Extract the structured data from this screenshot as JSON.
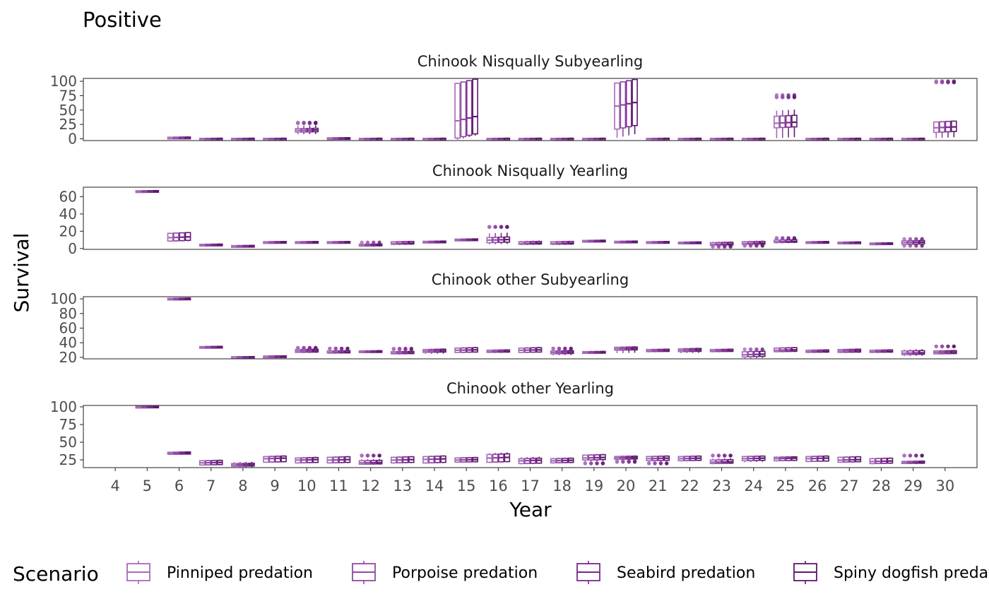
{
  "title": "Positive",
  "chart_data": {
    "type": "boxplot",
    "xlabel": "Year",
    "ylabel": "Survival",
    "x": [
      4,
      5,
      6,
      7,
      8,
      9,
      10,
      11,
      12,
      13,
      14,
      15,
      16,
      17,
      18,
      19,
      20,
      21,
      22,
      23,
      24,
      25,
      26,
      27,
      28,
      29,
      30
    ],
    "legend": {
      "title": "Scenario",
      "position": "bottom",
      "entries": [
        "Pinniped predation",
        "Porpoise predation",
        "Seabird predation",
        "Spiny dogfish predation"
      ]
    },
    "colors": [
      "#a66bb8",
      "#8f4aa3",
      "#7a2a8e",
      "#5e1a6e"
    ],
    "panels": [
      {
        "title": "Chinook Nisqually Subyearling",
        "ylim": [
          -3,
          105
        ],
        "yticks": [
          0,
          25,
          50,
          75,
          100
        ],
        "boxes": [
          {
            "x": 6,
            "q1": 1.5,
            "med": 2.5,
            "q3": 3,
            "lo": 1,
            "hi": 3.5
          },
          {
            "x": 7,
            "q1": 0,
            "med": 0.5,
            "q3": 1,
            "lo": 0,
            "hi": 1
          },
          {
            "x": 8,
            "q1": 0,
            "med": 0.5,
            "q3": 1,
            "lo": 0,
            "hi": 1
          },
          {
            "x": 9,
            "q1": 0,
            "med": 0.5,
            "q3": 1,
            "lo": 0,
            "hi": 1
          },
          {
            "x": 10,
            "q1": 12,
            "med": 15,
            "q3": 18,
            "lo": 8,
            "hi": 23,
            "out": [
              28,
              27,
              28
            ]
          },
          {
            "x": 11,
            "q1": 0.5,
            "med": 1,
            "q3": 2,
            "lo": 0,
            "hi": 2.5
          },
          {
            "x": 12,
            "q1": 0,
            "med": 0.5,
            "q3": 1,
            "lo": 0,
            "hi": 1
          },
          {
            "x": 13,
            "q1": 0,
            "med": 0.5,
            "q3": 1,
            "lo": 0,
            "hi": 1
          },
          {
            "x": 14,
            "q1": 0,
            "med": 0.5,
            "q3": 1,
            "lo": 0,
            "hi": 1
          },
          {
            "x": 15,
            "q1": 5,
            "med": 35,
            "q3": 100,
            "lo": 2,
            "hi": 100
          },
          {
            "x": 16,
            "q1": 0,
            "med": 0.5,
            "q3": 1,
            "lo": 0,
            "hi": 1
          },
          {
            "x": 17,
            "q1": 0,
            "med": 0.5,
            "q3": 1,
            "lo": 0,
            "hi": 1
          },
          {
            "x": 18,
            "q1": 0,
            "med": 0.5,
            "q3": 1,
            "lo": 0,
            "hi": 1
          },
          {
            "x": 19,
            "q1": 0,
            "med": 0.5,
            "q3": 1,
            "lo": 0,
            "hi": 1
          },
          {
            "x": 20,
            "q1": 20,
            "med": 60,
            "q3": 100,
            "lo": 5,
            "hi": 100
          },
          {
            "x": 21,
            "q1": 0,
            "med": 0.5,
            "q3": 1,
            "lo": 0,
            "hi": 1
          },
          {
            "x": 22,
            "q1": 0,
            "med": 0.5,
            "q3": 1,
            "lo": 0,
            "hi": 1
          },
          {
            "x": 23,
            "q1": 0,
            "med": 0.5,
            "q3": 1,
            "lo": 0,
            "hi": 1
          },
          {
            "x": 24,
            "q1": 0,
            "med": 0.5,
            "q3": 1,
            "lo": 0,
            "hi": 1
          },
          {
            "x": 25,
            "q1": 20,
            "med": 28,
            "q3": 40,
            "lo": 2,
            "hi": 50,
            "out": [
              76,
              72,
              73
            ]
          },
          {
            "x": 26,
            "q1": 0,
            "med": 0.5,
            "q3": 1,
            "lo": 0,
            "hi": 1
          },
          {
            "x": 27,
            "q1": 0,
            "med": 0.5,
            "q3": 1,
            "lo": 0,
            "hi": 1
          },
          {
            "x": 28,
            "q1": 0,
            "med": 0.5,
            "q3": 1,
            "lo": 0,
            "hi": 1
          },
          {
            "x": 29,
            "q1": 0,
            "med": 0.5,
            "q3": 1,
            "lo": 0,
            "hi": 1
          },
          {
            "x": 30,
            "q1": 12,
            "med": 20,
            "q3": 30,
            "lo": 2,
            "hi": 30,
            "out": [
              100,
              98,
              99
            ]
          }
        ]
      },
      {
        "title": "Chinook Nisqually Yearling",
        "ylim": [
          -1,
          71
        ],
        "yticks": [
          0,
          20,
          40,
          60
        ],
        "boxes": [
          {
            "x": 5,
            "q1": 65.5,
            "med": 66,
            "q3": 67,
            "lo": 65,
            "hi": 67.5
          },
          {
            "x": 6,
            "q1": 9,
            "med": 13,
            "q3": 18,
            "lo": 8,
            "hi": 18
          },
          {
            "x": 7,
            "q1": 3,
            "med": 4,
            "q3": 5,
            "lo": 2.5,
            "hi": 5.5
          },
          {
            "x": 8,
            "q1": 2,
            "med": 3,
            "q3": 3.5,
            "lo": 1.5,
            "hi": 4
          },
          {
            "x": 9,
            "q1": 7,
            "med": 7.5,
            "q3": 8,
            "lo": 6.5,
            "hi": 8.5
          },
          {
            "x": 10,
            "q1": 7,
            "med": 7.5,
            "q3": 8,
            "lo": 6.5,
            "hi": 8.5
          },
          {
            "x": 11,
            "q1": 7,
            "med": 7.5,
            "q3": 8,
            "lo": 6.5,
            "hi": 8.5
          },
          {
            "x": 12,
            "q1": 3,
            "med": 4,
            "q3": 5,
            "lo": 2,
            "hi": 6,
            "out": [
              7
            ]
          },
          {
            "x": 13,
            "q1": 5,
            "med": 6,
            "q3": 8,
            "lo": 4,
            "hi": 8.5
          },
          {
            "x": 14,
            "q1": 7,
            "med": 7.5,
            "q3": 8.5,
            "lo": 6.5,
            "hi": 9
          },
          {
            "x": 15,
            "q1": 9,
            "med": 10,
            "q3": 11,
            "lo": 8.5,
            "hi": 11
          },
          {
            "x": 16,
            "q1": 7,
            "med": 10,
            "q3": 13,
            "lo": 5,
            "hi": 18,
            "out": [
              25,
              25,
              25
            ]
          },
          {
            "x": 17,
            "q1": 5,
            "med": 6,
            "q3": 8,
            "lo": 4,
            "hi": 9
          },
          {
            "x": 18,
            "q1": 5,
            "med": 6,
            "q3": 8,
            "lo": 4,
            "hi": 8.5
          },
          {
            "x": 19,
            "q1": 8,
            "med": 8.5,
            "q3": 9.5,
            "lo": 7.5,
            "hi": 10
          },
          {
            "x": 20,
            "q1": 7,
            "med": 7.5,
            "q3": 8.5,
            "lo": 6.5,
            "hi": 9
          },
          {
            "x": 21,
            "q1": 7,
            "med": 7.5,
            "q3": 8,
            "lo": 6.5,
            "hi": 8.5
          },
          {
            "x": 22,
            "q1": 6,
            "med": 6.5,
            "q3": 7.5,
            "lo": 5.5,
            "hi": 8
          },
          {
            "x": 23,
            "q1": 4,
            "med": 5,
            "q3": 7,
            "lo": 3,
            "hi": 8,
            "out": [
              2,
              3
            ]
          },
          {
            "x": 24,
            "q1": 5,
            "med": 6,
            "q3": 8,
            "lo": 4,
            "hi": 9,
            "out": [
              4,
              3
            ]
          },
          {
            "x": 25,
            "q1": 7,
            "med": 8,
            "q3": 10,
            "lo": 6,
            "hi": 11,
            "out": [
              12,
              12
            ]
          },
          {
            "x": 26,
            "q1": 6.5,
            "med": 7,
            "q3": 8,
            "lo": 6,
            "hi": 8.5
          },
          {
            "x": 27,
            "q1": 6.5,
            "med": 7,
            "q3": 7.5,
            "lo": 6,
            "hi": 8
          },
          {
            "x": 28,
            "q1": 5,
            "med": 5.5,
            "q3": 6.5,
            "lo": 4.5,
            "hi": 7
          },
          {
            "x": 29,
            "q1": 5,
            "med": 7,
            "q3": 9,
            "lo": 3,
            "hi": 10,
            "out": [
              3,
              11
            ]
          }
        ]
      },
      {
        "title": "Chinook other Subyearling",
        "ylim": [
          18,
          103
        ],
        "yticks": [
          20,
          40,
          60,
          80,
          100
        ],
        "boxes": [
          {
            "x": 6,
            "q1": 99,
            "med": 100,
            "q3": 101,
            "lo": 98.5,
            "hi": 101.5
          },
          {
            "x": 7,
            "q1": 33,
            "med": 34,
            "q3": 35,
            "lo": 32.5,
            "hi": 35.5
          },
          {
            "x": 8,
            "q1": 20,
            "med": 20.5,
            "q3": 21,
            "lo": 19.5,
            "hi": 21.5
          },
          {
            "x": 9,
            "q1": 21,
            "med": 21.5,
            "q3": 22,
            "lo": 20.5,
            "hi": 22.5
          },
          {
            "x": 10,
            "q1": 27,
            "med": 29,
            "q3": 31,
            "lo": 26,
            "hi": 32,
            "out": [
              33,
              33
            ]
          },
          {
            "x": 11,
            "q1": 26,
            "med": 27,
            "q3": 29,
            "lo": 25,
            "hi": 30,
            "out": [
              32,
              32
            ]
          },
          {
            "x": 12,
            "q1": 27,
            "med": 28,
            "q3": 29,
            "lo": 26,
            "hi": 30
          },
          {
            "x": 13,
            "q1": 25,
            "med": 26,
            "q3": 28,
            "lo": 24,
            "hi": 29,
            "out": [
              32,
              31
            ]
          },
          {
            "x": 14,
            "q1": 27,
            "med": 29,
            "q3": 31,
            "lo": 25,
            "hi": 32
          },
          {
            "x": 15,
            "q1": 27,
            "med": 30,
            "q3": 33,
            "lo": 26,
            "hi": 34
          },
          {
            "x": 16,
            "q1": 27,
            "med": 28,
            "q3": 30,
            "lo": 26,
            "hi": 31
          },
          {
            "x": 17,
            "q1": 27,
            "med": 30,
            "q3": 33,
            "lo": 26,
            "hi": 34
          },
          {
            "x": 18,
            "q1": 25,
            "med": 27,
            "q3": 29,
            "lo": 23,
            "hi": 30,
            "out": [
              32,
              32
            ]
          },
          {
            "x": 19,
            "q1": 26,
            "med": 27,
            "q3": 28,
            "lo": 25,
            "hi": 29
          },
          {
            "x": 20,
            "q1": 30,
            "med": 32,
            "q3": 34,
            "lo": 26,
            "hi": 35
          },
          {
            "x": 21,
            "q1": 28,
            "med": 29,
            "q3": 31,
            "lo": 27,
            "hi": 31.5
          },
          {
            "x": 22,
            "q1": 28,
            "med": 30,
            "q3": 32,
            "lo": 26,
            "hi": 32.5
          },
          {
            "x": 23,
            "q1": 28,
            "med": 29,
            "q3": 31,
            "lo": 27,
            "hi": 31.5
          },
          {
            "x": 24,
            "q1": 21,
            "med": 24,
            "q3": 28,
            "lo": 19,
            "hi": 29,
            "out": [
              31
            ]
          },
          {
            "x": 25,
            "q1": 28,
            "med": 30,
            "q3": 33,
            "lo": 27,
            "hi": 34
          },
          {
            "x": 26,
            "q1": 27,
            "med": 28,
            "q3": 30,
            "lo": 26,
            "hi": 31
          },
          {
            "x": 27,
            "q1": 27,
            "med": 29,
            "q3": 31,
            "lo": 26,
            "hi": 31.5
          },
          {
            "x": 28,
            "q1": 27,
            "med": 28,
            "q3": 30,
            "lo": 26,
            "hi": 31
          },
          {
            "x": 29,
            "q1": 24,
            "med": 26,
            "q3": 29,
            "lo": 22,
            "hi": 31
          },
          {
            "x": 30,
            "q1": 25,
            "med": 27,
            "q3": 29,
            "lo": 24,
            "hi": 30,
            "out": [
              35,
              35
            ]
          }
        ]
      },
      {
        "title": "Chinook other Yearling",
        "ylim": [
          14,
          102
        ],
        "yticks": [
          25,
          50,
          75,
          100
        ],
        "boxes": [
          {
            "x": 5,
            "q1": 99,
            "med": 100,
            "q3": 101,
            "lo": 98.5,
            "hi": 101.5
          },
          {
            "x": 6,
            "q1": 33,
            "med": 34.5,
            "q3": 36,
            "lo": 32,
            "hi": 36.5
          },
          {
            "x": 7,
            "q1": 18,
            "med": 21,
            "q3": 24,
            "lo": 17,
            "hi": 25
          },
          {
            "x": 8,
            "q1": 16,
            "med": 18,
            "q3": 20,
            "lo": 14,
            "hi": 22
          },
          {
            "x": 9,
            "q1": 22,
            "med": 27,
            "q3": 30,
            "lo": 21,
            "hi": 31
          },
          {
            "x": 10,
            "q1": 21,
            "med": 25,
            "q3": 28,
            "lo": 20,
            "hi": 29
          },
          {
            "x": 11,
            "q1": 21,
            "med": 25,
            "q3": 29,
            "lo": 20,
            "hi": 30
          },
          {
            "x": 12,
            "q1": 19,
            "med": 21,
            "q3": 24,
            "lo": 18,
            "hi": 26,
            "out": [
              31,
              31
            ]
          },
          {
            "x": 13,
            "q1": 21,
            "med": 25,
            "q3": 29,
            "lo": 20,
            "hi": 30
          },
          {
            "x": 14,
            "q1": 21,
            "med": 26,
            "q3": 30,
            "lo": 20,
            "hi": 31
          },
          {
            "x": 15,
            "q1": 22,
            "med": 25,
            "q3": 28,
            "lo": 21,
            "hi": 29
          },
          {
            "x": 16,
            "q1": 22,
            "med": 28,
            "q3": 33,
            "lo": 21,
            "hi": 35
          },
          {
            "x": 17,
            "q1": 20,
            "med": 24,
            "q3": 27,
            "lo": 19,
            "hi": 29
          },
          {
            "x": 18,
            "q1": 21,
            "med": 24,
            "q3": 27,
            "lo": 20,
            "hi": 28
          },
          {
            "x": 19,
            "q1": 25,
            "med": 28,
            "q3": 32,
            "lo": 23,
            "hi": 33,
            "out": [
              20,
              20
            ]
          },
          {
            "x": 20,
            "q1": 26,
            "med": 28,
            "q3": 30,
            "lo": 25,
            "hi": 31,
            "out": [
              22,
              23
            ]
          },
          {
            "x": 21,
            "q1": 24,
            "med": 27,
            "q3": 30,
            "lo": 23,
            "hi": 31,
            "out": [
              20,
              20
            ]
          },
          {
            "x": 22,
            "q1": 24,
            "med": 27,
            "q3": 30,
            "lo": 23,
            "hi": 31
          },
          {
            "x": 23,
            "q1": 20,
            "med": 22,
            "q3": 25,
            "lo": 19,
            "hi": 27,
            "out": [
              31,
              31
            ]
          },
          {
            "x": 24,
            "q1": 24,
            "med": 27,
            "q3": 30,
            "lo": 22,
            "hi": 31
          },
          {
            "x": 25,
            "q1": 24,
            "med": 27,
            "q3": 29,
            "lo": 23,
            "hi": 30
          },
          {
            "x": 26,
            "q1": 23,
            "med": 27,
            "q3": 30,
            "lo": 22,
            "hi": 31
          },
          {
            "x": 27,
            "q1": 22,
            "med": 25,
            "q3": 29,
            "lo": 21,
            "hi": 30
          },
          {
            "x": 28,
            "q1": 20,
            "med": 23,
            "q3": 27,
            "lo": 19,
            "hi": 28
          },
          {
            "x": 29,
            "q1": 20,
            "med": 21,
            "q3": 23,
            "lo": 19,
            "hi": 24,
            "out": [
              31,
              31
            ]
          }
        ]
      }
    ]
  }
}
